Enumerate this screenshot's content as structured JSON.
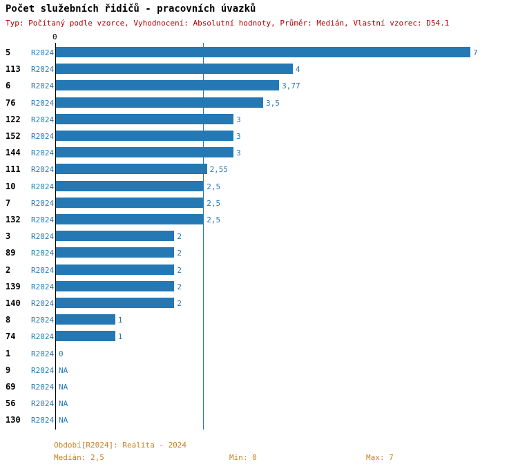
{
  "title": "Počet služebních řidičů - pracovních úvazků",
  "subtitle": "Typ: Počítaný podle vzorce, Vyhodnocení: Absolutní hodnoty, Průměr: Medián, Vlastní vzorec: D54.1",
  "axis": {
    "zero_tick": "0"
  },
  "chart_data": {
    "type": "bar",
    "orientation": "horizontal",
    "title": "Počet služebních řidičů - pracovních úvazků",
    "series_label": "R2024",
    "categories": [
      "5",
      "113",
      "6",
      "76",
      "122",
      "152",
      "144",
      "111",
      "10",
      "7",
      "132",
      "3",
      "89",
      "2",
      "139",
      "140",
      "8",
      "74",
      "1",
      "9",
      "69",
      "56",
      "130"
    ],
    "values": [
      7,
      4,
      3.77,
      3.5,
      3,
      3,
      3,
      2.55,
      2.5,
      2.5,
      2.5,
      2,
      2,
      2,
      2,
      2,
      1,
      1,
      0,
      null,
      null,
      null,
      null
    ],
    "value_labels": [
      "7",
      "4",
      "3,77",
      "3,5",
      "3",
      "3",
      "3",
      "2,55",
      "2,5",
      "2,5",
      "2,5",
      "2",
      "2",
      "2",
      "2",
      "2",
      "1",
      "1",
      "0",
      "NA",
      "NA",
      "NA",
      "NA"
    ],
    "xlim": [
      0,
      7.5
    ],
    "xticks": [
      "0"
    ],
    "median_line_value": 2.5,
    "grid": "off",
    "legend_position": "none",
    "bar_color": "#2478b4"
  },
  "footer": {
    "period": "Období[R2024]: Realita - 2024",
    "median": "Medián: 2,5",
    "min": "Min: 0",
    "max": "Max: 7"
  },
  "colors": {
    "bar": "#2478b4",
    "value_text": "#2478b4",
    "series_text": "#2478b4",
    "median_line": "#2478b4",
    "subtitle_text": "#b30000",
    "footer_text": "#cc7f1e",
    "axis_line": "#000000"
  }
}
